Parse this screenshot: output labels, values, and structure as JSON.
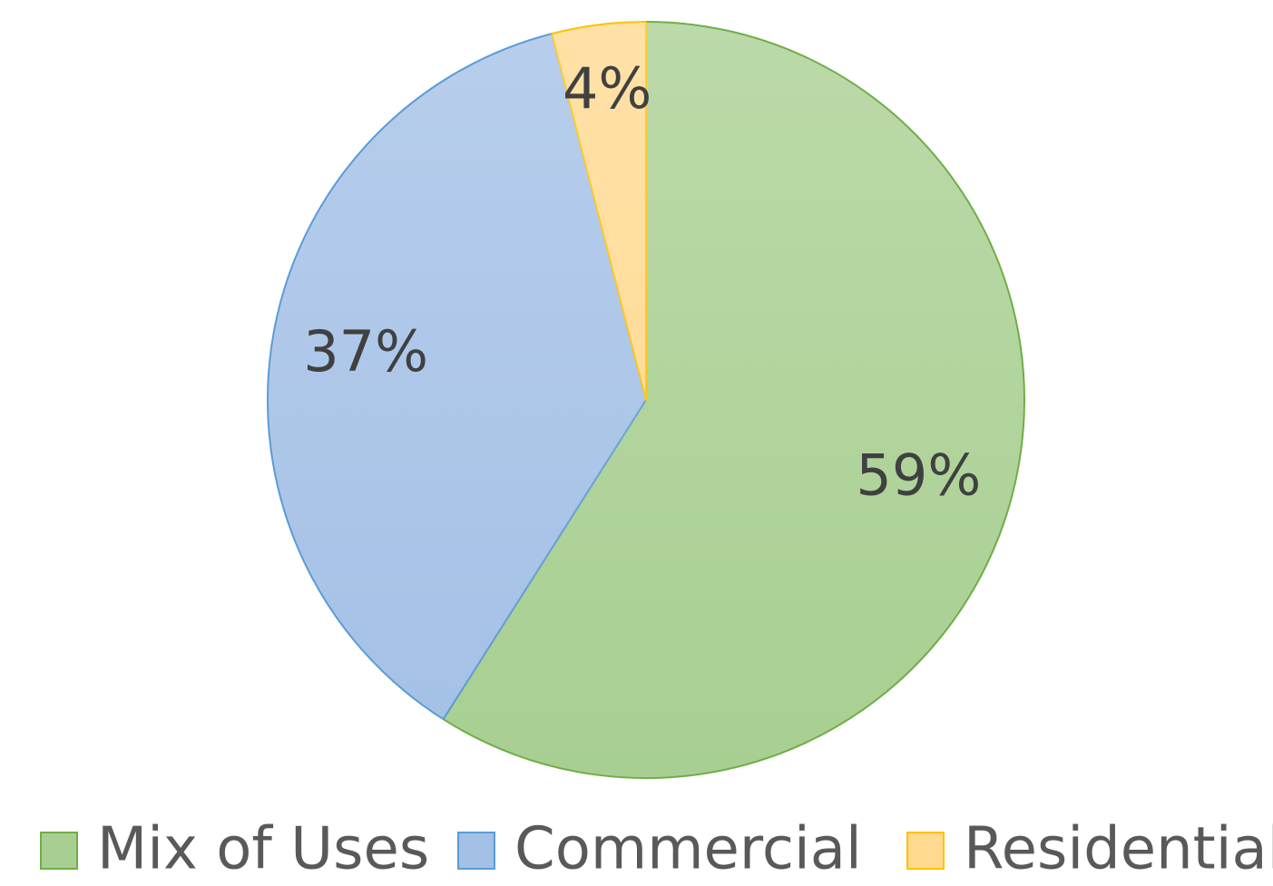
{
  "chart_data": {
    "type": "pie",
    "categories": [
      "Mix of Uses",
      "Commercial",
      "Residential"
    ],
    "values": [
      59,
      37,
      4
    ],
    "value_labels": [
      "59%",
      "37%",
      "4%"
    ],
    "colors": [
      "#a8cf91",
      "#a3c0e6",
      "#ffd98e"
    ],
    "edge_colors": [
      "#70ad47",
      "#5b9bd5",
      "#ffc000"
    ],
    "legend": "bottom"
  }
}
